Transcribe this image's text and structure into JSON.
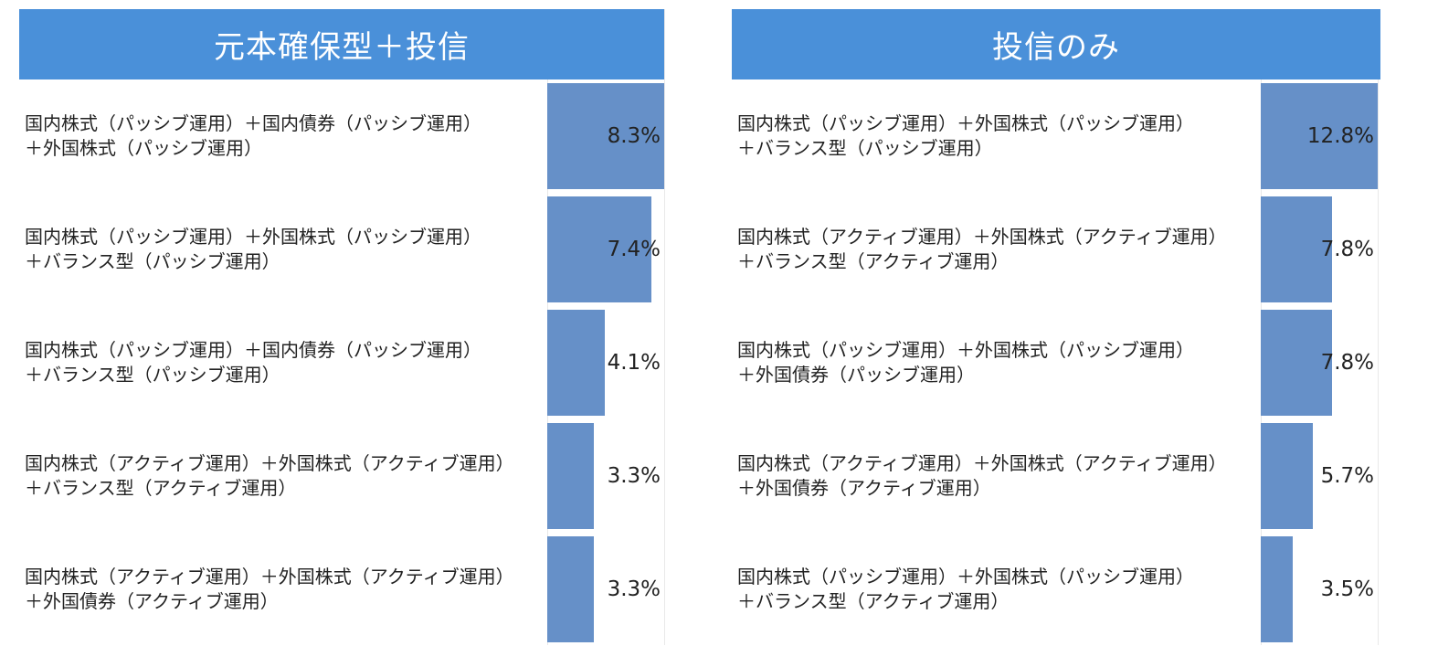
{
  "chart_data": [
    {
      "type": "bar",
      "orientation": "horizontal",
      "title": "元本確保型＋投信",
      "categories": [
        [
          "国内株式（パッシブ運用）＋国内債券（パッシブ運用）",
          "＋外国株式（パッシブ運用）"
        ],
        [
          "国内株式（パッシブ運用）＋外国株式（パッシブ運用）",
          "＋バランス型（パッシブ運用）"
        ],
        [
          "国内株式（パッシブ運用）＋国内債券（パッシブ運用）",
          "＋バランス型（パッシブ運用）"
        ],
        [
          "国内株式（アクティブ運用）＋外国株式（アクティブ運用）",
          "＋バランス型（アクティブ運用）"
        ],
        [
          "国内株式（アクティブ運用）＋外国株式（アクティブ運用）",
          "＋外国債券（アクティブ運用）"
        ]
      ],
      "values": [
        8.3,
        7.4,
        4.1,
        3.3,
        3.3
      ],
      "value_labels": [
        "8.3%",
        "7.4%",
        "4.1%",
        "3.3%",
        "3.3%"
      ],
      "xlim": [
        0,
        8.3
      ]
    },
    {
      "type": "bar",
      "orientation": "horizontal",
      "title": "投信のみ",
      "categories": [
        [
          "国内株式（パッシブ運用）＋外国株式（パッシブ運用）",
          "＋バランス型（パッシブ運用）"
        ],
        [
          "国内株式（アクティブ運用）＋外国株式（アクティブ運用）",
          "＋バランス型（アクティブ運用）"
        ],
        [
          "国内株式（パッシブ運用）＋外国株式（パッシブ運用）",
          "＋外国債券（パッシブ運用）"
        ],
        [
          "国内株式（アクティブ運用）＋外国株式（アクティブ運用）",
          "＋外国債券（アクティブ運用）"
        ],
        [
          "国内株式（パッシブ運用）＋外国株式（パッシブ運用）",
          "＋バランス型（アクティブ運用）"
        ]
      ],
      "values": [
        12.8,
        7.8,
        7.8,
        5.7,
        3.5
      ],
      "value_labels": [
        "12.8%",
        "7.8%",
        "7.8%",
        "5.7%",
        "3.5%"
      ],
      "xlim": [
        0,
        12.8
      ]
    }
  ],
  "colors": {
    "header": "#4a90d9",
    "bar": "#6690c8",
    "text": "#222222"
  }
}
